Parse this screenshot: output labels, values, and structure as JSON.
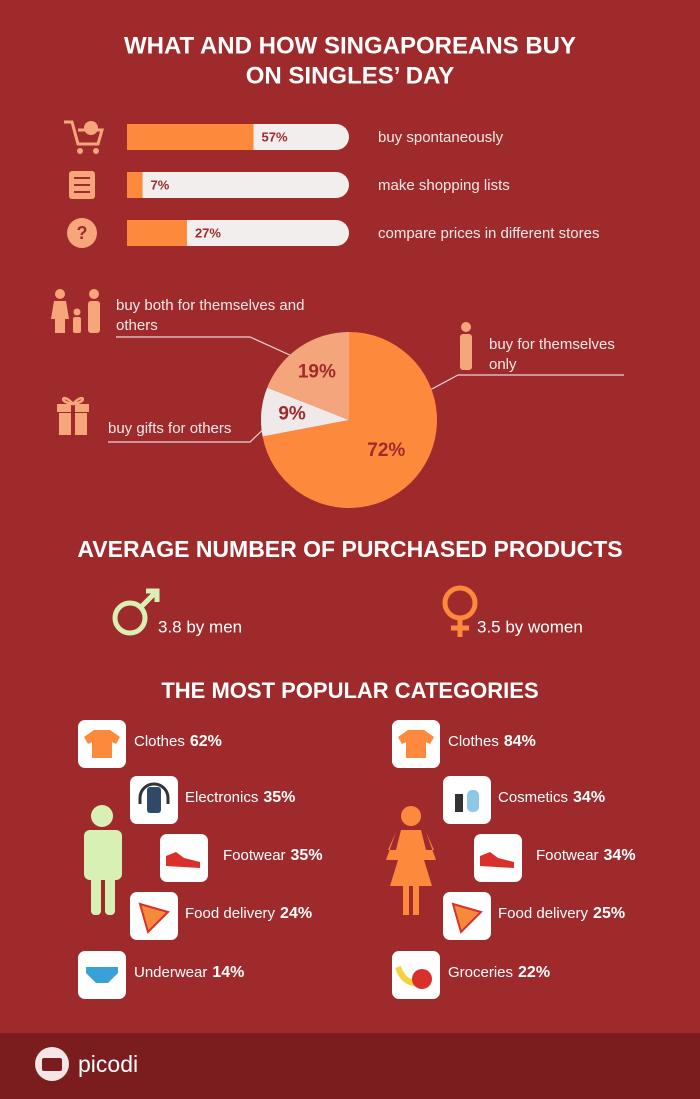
{
  "header": {
    "title_lines": [
      "WHAT AND HOW SINGAPOREANS BUY",
      "ON SINGLES’ DAY"
    ]
  },
  "chart_data": [
    {
      "type": "bar",
      "categories": [
        "buy spontaneously",
        "make shopping lists",
        "compare prices in different stores"
      ],
      "values": [
        57,
        7,
        27
      ],
      "value_labels": [
        "57%",
        "7%",
        "27%"
      ],
      "xlim": [
        0,
        100
      ],
      "color": "#fd8a3c",
      "track_color": "#f2eeee"
    },
    {
      "type": "pie",
      "categories": [
        "buy for themselves only",
        "buy gifts for others",
        "buy both for themselves and others"
      ],
      "values": [
        72,
        9,
        19
      ],
      "value_labels": [
        "72%",
        "9%",
        "19%"
      ],
      "colors": [
        "#fd8a3c",
        "#efe9e9",
        "#f5a57b"
      ]
    }
  ],
  "average": {
    "title": "AVERAGE NUMBER OF PURCHASED PRODUCTS",
    "items": [
      "3.8 by men",
      "3.5 by women"
    ]
  },
  "popular": {
    "title": "THE MOST POPULAR CATEGORIES",
    "men": [
      {
        "name": "Clothes",
        "share": "62%"
      },
      {
        "name": "Electronics",
        "share": "35%"
      },
      {
        "name": "Footwear",
        "share": "35%"
      },
      {
        "name": "Food delivery",
        "share": "24%"
      },
      {
        "name": "Underwear",
        "share": "14%"
      }
    ],
    "women": [
      {
        "name": "Clothes",
        "share": "84%"
      },
      {
        "name": "Cosmetics",
        "share": "34%"
      },
      {
        "name": "Footwear",
        "share": "34%"
      },
      {
        "name": "Food delivery",
        "share": "25%"
      },
      {
        "name": "Groceries",
        "share": "22%"
      }
    ]
  },
  "footer": {
    "brand": "picodi"
  }
}
